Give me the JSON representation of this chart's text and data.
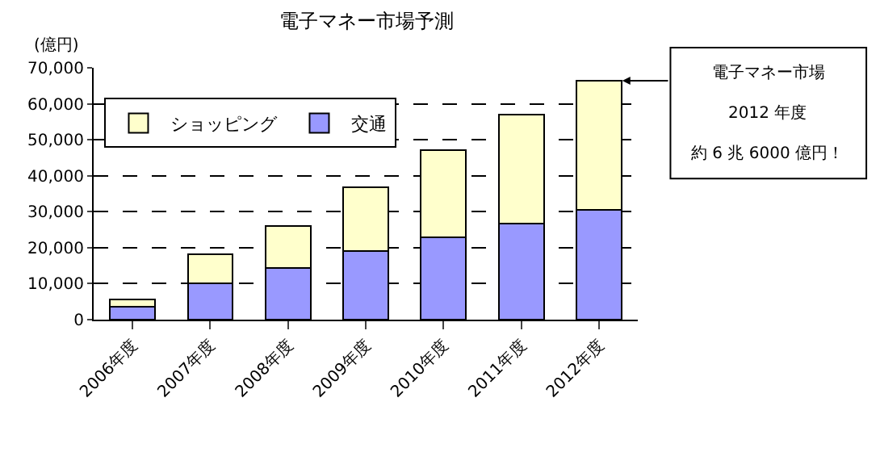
{
  "chart_data": {
    "type": "bar",
    "stacked": true,
    "title": "電子マネー市場予測",
    "ylabel": "(億円)",
    "categories": [
      "2006年度",
      "2007年度",
      "2008年度",
      "2009年度",
      "2010年度",
      "2011年度",
      "2012年度"
    ],
    "series": [
      {
        "name": "交通",
        "color": "#9999ff",
        "values": [
          3600,
          10000,
          14400,
          19100,
          22800,
          26600,
          30500
        ]
      },
      {
        "name": "ショッピング",
        "color": "#ffffcc",
        "values": [
          1900,
          8100,
          11700,
          17800,
          24400,
          30400,
          35900
        ]
      }
    ],
    "ylim": [
      0,
      70000
    ],
    "yticks": [
      {
        "value": 0,
        "label": "0"
      },
      {
        "value": 10000,
        "label": "10,000"
      },
      {
        "value": 20000,
        "label": "20,000"
      },
      {
        "value": 30000,
        "label": "30,000"
      },
      {
        "value": 40000,
        "label": "40,000"
      },
      {
        "value": 50000,
        "label": "50,000"
      },
      {
        "value": 60000,
        "label": "60,000"
      },
      {
        "value": 70000,
        "label": "70,000"
      }
    ],
    "grid": "y",
    "line_style": "dashed",
    "legend": "top left",
    "annotations": [
      "電子マネー市場",
      "2012 年度",
      "約 6 兆 6000 億円！"
    ]
  }
}
